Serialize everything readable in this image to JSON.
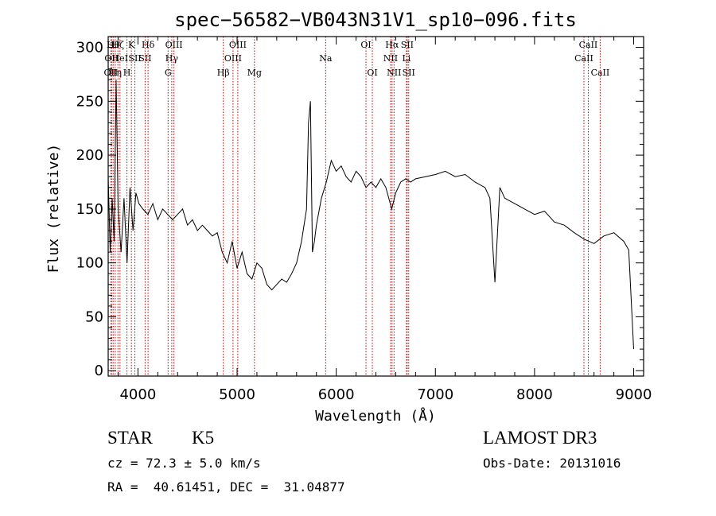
{
  "chart_data": {
    "type": "line",
    "title": "spec−56582−VB043N31V1_sp10−096.fits",
    "xlabel": "Wavelength (Å)",
    "ylabel": "Flux (relative)",
    "xlim": [
      3700,
      9100
    ],
    "ylim": [
      -5,
      310
    ],
    "xticks": [
      4000,
      5000,
      6000,
      7000,
      8000,
      9000
    ],
    "yticks": [
      0,
      50,
      100,
      150,
      200,
      250,
      300
    ],
    "grid": false,
    "line_color": "#000000",
    "marker_color": "#c00000",
    "series": [
      {
        "x": [
          3700,
          3720,
          3740,
          3760,
          3780,
          3800,
          3830,
          3860,
          3890,
          3920,
          3950,
          3980,
          4010,
          4050,
          4100,
          4150,
          4200,
          4250,
          4300,
          4350,
          4400,
          4450,
          4500,
          4550,
          4600,
          4650,
          4700,
          4750,
          4800,
          4850,
          4900,
          4950,
          5000,
          5050,
          5100,
          5150,
          5200,
          5250,
          5300,
          5350,
          5400,
          5450,
          5500,
          5550,
          5600,
          5650,
          5700,
          5720,
          5740,
          5760,
          5780,
          5800,
          5850,
          5900,
          5950,
          6000,
          6050,
          6100,
          6150,
          6200,
          6250,
          6300,
          6350,
          6400,
          6450,
          6500,
          6560,
          6600,
          6650,
          6700,
          6750,
          6800,
          6900,
          7000,
          7100,
          7200,
          7300,
          7400,
          7500,
          7550,
          7600,
          7650,
          7700,
          7800,
          7900,
          8000,
          8100,
          8200,
          8300,
          8400,
          8500,
          8600,
          8700,
          8800,
          8900,
          8950,
          9000
        ],
        "y": [
          180,
          110,
          160,
          120,
          270,
          150,
          110,
          160,
          100,
          170,
          130,
          165,
          155,
          150,
          145,
          155,
          140,
          150,
          145,
          140,
          145,
          150,
          135,
          140,
          130,
          135,
          130,
          125,
          128,
          110,
          100,
          120,
          95,
          110,
          90,
          85,
          100,
          95,
          80,
          75,
          80,
          85,
          82,
          90,
          100,
          120,
          150,
          230,
          250,
          110,
          120,
          135,
          160,
          175,
          195,
          185,
          190,
          180,
          175,
          185,
          180,
          170,
          175,
          170,
          178,
          170,
          150,
          165,
          175,
          178,
          175,
          178,
          180,
          182,
          185,
          180,
          182,
          175,
          170,
          160,
          82,
          170,
          160,
          155,
          150,
          145,
          148,
          138,
          135,
          128,
          122,
          118,
          125,
          128,
          120,
          112,
          20
        ]
      }
    ],
    "line_markers": [
      {
        "x": 3727,
        "label": "OII",
        "row": 2
      },
      {
        "x": 3734,
        "label": "OII",
        "row": 1
      },
      {
        "x": 3750,
        "label": "Hθ",
        "row": 0
      },
      {
        "x": 3771,
        "label": "Hη",
        "row": 2
      },
      {
        "x": 3798,
        "label": "Hζ",
        "row": 0
      },
      {
        "x": 3819,
        "label": "HeI",
        "row": 1
      },
      {
        "x": 3889,
        "label": "H",
        "row": 2
      },
      {
        "x": 3934,
        "label": "K",
        "row": 0
      },
      {
        "x": 3969,
        "label": "SII",
        "row": 1
      },
      {
        "x": 4102,
        "label": "Hδ",
        "row": 0
      },
      {
        "x": 4072,
        "label": "SII",
        "row": 1
      },
      {
        "x": 4304,
        "label": "G",
        "row": 2
      },
      {
        "x": 4341,
        "label": "Hγ",
        "row": 1
      },
      {
        "x": 4363,
        "label": "OIII",
        "row": 0
      },
      {
        "x": 4861,
        "label": "Hβ",
        "row": 2
      },
      {
        "x": 4959,
        "label": "OIII",
        "row": 1
      },
      {
        "x": 5007,
        "label": "OIII",
        "row": 0
      },
      {
        "x": 5175,
        "label": "Mg",
        "row": 2
      },
      {
        "x": 5893,
        "label": "Na",
        "row": 1
      },
      {
        "x": 6300,
        "label": "OI",
        "row": 0
      },
      {
        "x": 6364,
        "label": "OI",
        "row": 2
      },
      {
        "x": 6548,
        "label": "NII",
        "row": 1
      },
      {
        "x": 6563,
        "label": "Hα",
        "row": 0
      },
      {
        "x": 6583,
        "label": "NII",
        "row": 2
      },
      {
        "x": 6708,
        "label": "Li",
        "row": 1
      },
      {
        "x": 6716,
        "label": "SII",
        "row": 0
      },
      {
        "x": 6731,
        "label": "SII",
        "row": 2
      },
      {
        "x": 8498,
        "label": "CaII",
        "row": 1
      },
      {
        "x": 8542,
        "label": "CaII",
        "row": 0
      },
      {
        "x": 8662,
        "label": "CaII",
        "row": 2
      }
    ]
  },
  "info": {
    "class": "STAR",
    "subclass": "K5",
    "survey": "LAMOST DR3",
    "cz": "cz = 72.3 ± 5.0 km/s",
    "obs_date": "Obs-Date: 20131016",
    "coords": "RA =  40.61451, DEC =  31.04877"
  }
}
